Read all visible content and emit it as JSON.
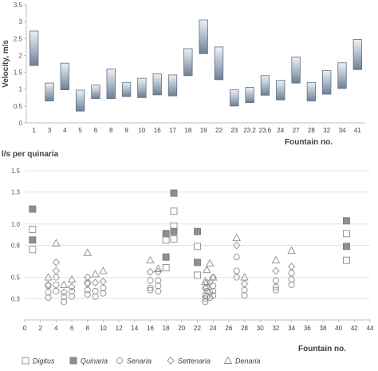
{
  "chart_data": [
    {
      "type": "range-bar",
      "title": "",
      "ylabel": "Velocity, m/s",
      "xlabel": "Fountain no.",
      "ylim": [
        0,
        3.5
      ],
      "yticks": [
        "0",
        "0.5",
        "1",
        "1.5",
        "2",
        "2.5",
        "3",
        "3.5"
      ],
      "grid": false,
      "categories": [
        "1",
        "3",
        "4",
        "5",
        "6",
        "8",
        "9",
        "10",
        "16",
        "17",
        "18",
        "19",
        "22",
        "23",
        "23.2",
        "23.6",
        "24",
        "27",
        "28",
        "32",
        "34",
        "41"
      ],
      "low": [
        1.7,
        0.65,
        0.98,
        0.35,
        0.72,
        0.72,
        0.78,
        0.75,
        0.83,
        0.8,
        1.4,
        2.05,
        1.28,
        0.5,
        0.6,
        0.82,
        0.68,
        1.18,
        0.65,
        0.85,
        1.02,
        1.58
      ],
      "high": [
        2.72,
        1.18,
        1.77,
        0.97,
        1.12,
        1.6,
        1.2,
        1.32,
        1.45,
        1.42,
        2.2,
        3.05,
        2.25,
        0.98,
        1.05,
        1.4,
        1.26,
        1.95,
        1.2,
        1.55,
        1.78,
        2.47
      ],
      "bar_color": "#a9b7c8"
    },
    {
      "type": "scatter",
      "title": "",
      "ylabel": "l/s per quinaria",
      "xlabel": "Fountain no.",
      "xlim": [
        0,
        44
      ],
      "ylim": [
        0.1,
        1.5
      ],
      "xticks": [
        "0",
        "2",
        "4",
        "6",
        "8",
        "10",
        "12",
        "14",
        "16",
        "18",
        "20",
        "22",
        "24",
        "26",
        "28",
        "30",
        "32",
        "34",
        "36",
        "38",
        "40",
        "42",
        "44"
      ],
      "yticks": [
        "0.3",
        "0.5",
        "0.8",
        "1.0",
        "1.3",
        "1.5"
      ],
      "grid": true,
      "legend_position": "bottom",
      "series": [
        {
          "name": "Digitus",
          "marker": "square-open",
          "points": [
            [
              1,
              0.95
            ],
            [
              1,
              0.76
            ],
            [
              18,
              0.85
            ],
            [
              18,
              0.59
            ],
            [
              19,
              1.12
            ],
            [
              19,
              0.98
            ],
            [
              19,
              0.86
            ],
            [
              22,
              0.79
            ],
            [
              22,
              0.52
            ],
            [
              41,
              0.91
            ],
            [
              41,
              0.66
            ]
          ]
        },
        {
          "name": "Quinaria",
          "marker": "square-filled",
          "points": [
            [
              1,
              1.14
            ],
            [
              1,
              0.85
            ],
            [
              18,
              0.91
            ],
            [
              18,
              0.69
            ],
            [
              19,
              1.29
            ],
            [
              19,
              0.93
            ],
            [
              22,
              0.93
            ],
            [
              22,
              0.64
            ],
            [
              41,
              1.03
            ],
            [
              41,
              0.79
            ]
          ]
        },
        {
          "name": "Senaria",
          "marker": "circle-open",
          "points": [
            [
              3,
              0.42
            ],
            [
              3,
              0.36
            ],
            [
              3,
              0.31
            ],
            [
              4,
              0.5
            ],
            [
              4,
              0.43
            ],
            [
              4,
              0.37
            ],
            [
              5,
              0.32
            ],
            [
              5,
              0.27
            ],
            [
              6,
              0.37
            ],
            [
              6,
              0.32
            ],
            [
              8,
              0.45
            ],
            [
              8,
              0.38
            ],
            [
              8,
              0.34
            ],
            [
              9,
              0.37
            ],
            [
              9,
              0.32
            ],
            [
              10,
              0.4
            ],
            [
              10,
              0.35
            ],
            [
              16,
              0.47
            ],
            [
              16,
              0.4
            ],
            [
              16,
              0.38
            ],
            [
              17,
              0.47
            ],
            [
              17,
              0.42
            ],
            [
              17,
              0.37
            ],
            [
              23,
              0.3
            ],
            [
              23,
              0.27
            ],
            [
              23,
              0.33
            ],
            [
              23.2,
              0.4
            ],
            [
              23.2,
              0.37
            ],
            [
              23.2,
              0.32
            ],
            [
              23.6,
              0.36
            ],
            [
              23.6,
              0.31
            ],
            [
              24,
              0.42
            ],
            [
              24,
              0.37
            ],
            [
              24,
              0.33
            ],
            [
              27,
              0.69
            ],
            [
              27,
              0.56
            ],
            [
              27,
              0.5
            ],
            [
              28,
              0.38
            ],
            [
              28,
              0.33
            ],
            [
              32,
              0.47
            ],
            [
              32,
              0.41
            ],
            [
              32,
              0.38
            ],
            [
              34,
              0.54
            ],
            [
              34,
              0.48
            ],
            [
              34,
              0.43
            ]
          ]
        },
        {
          "name": "Settenaria",
          "marker": "diamond-open",
          "points": [
            [
              3,
              0.43
            ],
            [
              4,
              0.64
            ],
            [
              4,
              0.56
            ],
            [
              5,
              0.36
            ],
            [
              6,
              0.41
            ],
            [
              8,
              0.5
            ],
            [
              8,
              0.44
            ],
            [
              9,
              0.45
            ],
            [
              10,
              0.46
            ],
            [
              16,
              0.55
            ],
            [
              17,
              0.55
            ],
            [
              23,
              0.4
            ],
            [
              23.2,
              0.45
            ],
            [
              23.6,
              0.45
            ],
            [
              24,
              0.5
            ],
            [
              27,
              0.8
            ],
            [
              28,
              0.44
            ],
            [
              32,
              0.56
            ],
            [
              34,
              0.6
            ]
          ]
        },
        {
          "name": "Denaria",
          "marker": "triangle-open",
          "points": [
            [
              3,
              0.5
            ],
            [
              4,
              0.82
            ],
            [
              5,
              0.43
            ],
            [
              6,
              0.48
            ],
            [
              8,
              0.73
            ],
            [
              9,
              0.53
            ],
            [
              10,
              0.56
            ],
            [
              16,
              0.66
            ],
            [
              17,
              0.58
            ],
            [
              23,
              0.46
            ],
            [
              23.2,
              0.57
            ],
            [
              23.6,
              0.63
            ],
            [
              24,
              0.5
            ],
            [
              27,
              0.87
            ],
            [
              28,
              0.5
            ],
            [
              32,
              0.66
            ],
            [
              34,
              0.75
            ]
          ]
        }
      ]
    }
  ]
}
